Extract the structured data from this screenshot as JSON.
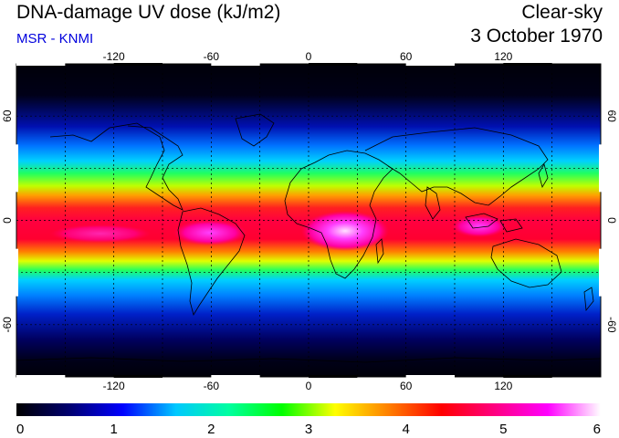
{
  "header": {
    "title": "DNA-damage UV dose (kJ/m2)",
    "subtitle": "MSR - KNMI",
    "sky_condition": "Clear-sky",
    "date": "3 October 1970"
  },
  "map": {
    "lon_ticks": [
      "-120",
      "-60",
      "0",
      "60",
      "120"
    ],
    "lat_ticks_left": [
      "60",
      "0",
      "-60"
    ],
    "lat_ticks_right": [
      "60",
      "0",
      "-60"
    ],
    "lon_range": [
      -180,
      180
    ],
    "lat_range": [
      -90,
      90
    ],
    "graticule_lon": [
      -150,
      -120,
      -90,
      -60,
      -30,
      0,
      30,
      60,
      90,
      120,
      150
    ],
    "graticule_lat": [
      -60,
      -30,
      0,
      30,
      60
    ],
    "tropics_lat": [
      -30,
      30
    ]
  },
  "colorbar": {
    "labels": [
      "0",
      "1",
      "2",
      "3",
      "4",
      "5",
      "6"
    ],
    "min": 0,
    "max": 6,
    "stops": [
      "#000000",
      "#000070",
      "#0000ff",
      "#00c8ff",
      "#00ffa0",
      "#00ff00",
      "#ffff00",
      "#ff8000",
      "#ff0000",
      "#ff0080",
      "#ff00ff",
      "#ffffff"
    ]
  },
  "colors": {
    "subtitle": "#0000dd",
    "band_equator": "#ff0030",
    "band_tropics": "#ffa000",
    "band_subtropics": "#20ff40",
    "band_midlat": "#00a8ff",
    "band_highlat": "#0010c0",
    "polar": "#000020",
    "africa_peak": "#ff60ff"
  }
}
